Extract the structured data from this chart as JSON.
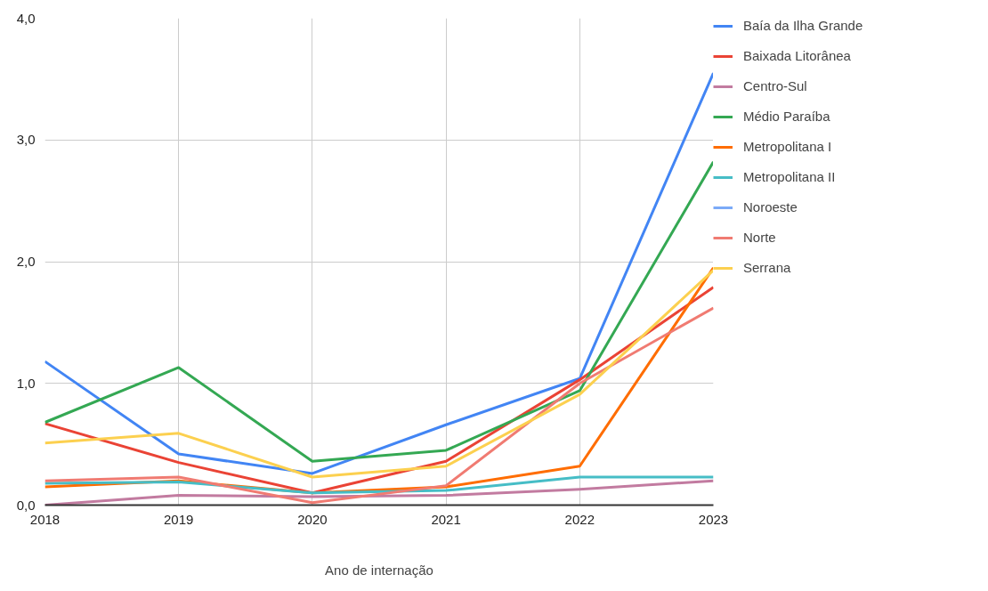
{
  "chart_data": {
    "type": "line",
    "xlabel": "Ano de internação",
    "x": [
      2018,
      2019,
      2020,
      2021,
      2022,
      2023
    ],
    "xlim": [
      2018,
      2023
    ],
    "xticks": [
      2018,
      2019,
      2020,
      2021,
      2022,
      2023
    ],
    "ylim": [
      0,
      4
    ],
    "yticks": [
      {
        "value": 0,
        "label": "0,0"
      },
      {
        "value": 1,
        "label": "1,0"
      },
      {
        "value": 2,
        "label": "2,0"
      },
      {
        "value": 3,
        "label": "3,0"
      },
      {
        "value": 4,
        "label": "4,0"
      }
    ],
    "grid": true,
    "legend": "right",
    "marker": "none",
    "line_style": "solid",
    "series": [
      {
        "name": "Baía da Ilha Grande",
        "color": "#4285f4",
        "values": [
          1.18,
          0.42,
          0.26,
          0.66,
          1.04,
          3.55
        ]
      },
      {
        "name": "Baixada Litorânea",
        "color": "#ea4335",
        "values": [
          0.67,
          0.35,
          0.1,
          0.36,
          1.03,
          1.79
        ]
      },
      {
        "name": "Centro-Sul",
        "color": "#c27ba0",
        "values": [
          0,
          0.08,
          0.07,
          0.08,
          0.13,
          0.2
        ]
      },
      {
        "name": "Médio Paraíba",
        "color": "#34a853",
        "values": [
          0.68,
          1.13,
          0.36,
          0.45,
          0.94,
          2.82
        ]
      },
      {
        "name": "Metropolitana I",
        "color": "#ff6d01",
        "values": [
          0.15,
          0.2,
          0.1,
          0.15,
          0.32,
          1.95
        ]
      },
      {
        "name": "Metropolitana II",
        "color": "#46bdc6",
        "values": [
          0.18,
          0.19,
          0.1,
          0.12,
          0.23,
          0.23
        ]
      },
      {
        "name": "Noroeste",
        "color": "#7baaf7",
        "values": [
          null,
          null,
          null,
          null,
          null,
          null
        ]
      },
      {
        "name": "Norte",
        "color": "#f07b72",
        "values": [
          0.2,
          0.23,
          0.02,
          0.16,
          1.0,
          1.62
        ]
      },
      {
        "name": "Serrana",
        "color": "#fcd04f",
        "values": [
          0.51,
          0.59,
          0.23,
          0.32,
          0.91,
          1.93
        ]
      }
    ]
  }
}
